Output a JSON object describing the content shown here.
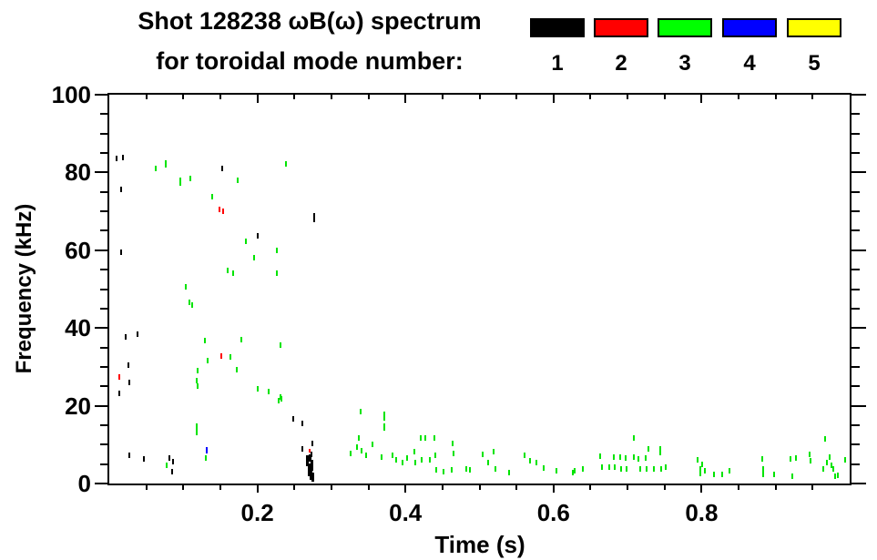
{
  "page": {
    "title_line1": "Shot 128238 ωB(ω) spectrum",
    "title_line2": "for toroidal mode number:"
  },
  "chart_data": {
    "type": "scatter",
    "title": "Shot 128238 ωB(ω) spectrum",
    "subtitle": "for toroidal mode number:",
    "xlabel": "Time (s)",
    "ylabel": "Frequency (kHz)",
    "xlim": [
      0,
      1.0
    ],
    "ylim": [
      0,
      100
    ],
    "x_major_ticks": [
      0.2,
      0.4,
      0.6,
      0.8
    ],
    "x_major_tick_labels": [
      "0.2",
      "0.4",
      "0.6",
      "0.8"
    ],
    "x_minor_step": 0.05,
    "y_major_ticks": [
      0,
      20,
      40,
      60,
      80,
      100
    ],
    "y_major_tick_labels": [
      "0",
      "20",
      "40",
      "60",
      "80",
      "100"
    ],
    "y_minor_step": 5,
    "grid": false,
    "legend_position": "top-right",
    "legend": [
      {
        "label": "1",
        "color": "#000000"
      },
      {
        "label": "2",
        "color": "#ff0000"
      },
      {
        "label": "3",
        "color": "#00ff00"
      },
      {
        "label": "4",
        "color": "#0000ff"
      },
      {
        "label": "5",
        "color": "#ffff00"
      }
    ],
    "series": [
      {
        "name": "1",
        "toroidal_mode": 1,
        "color": "#000000",
        "points": [
          [
            0.01,
            83.5
          ],
          [
            0.018,
            83.8
          ],
          [
            0.153,
            81.0
          ],
          [
            0.016,
            75.6
          ],
          [
            0.277,
            68.5,
            10
          ],
          [
            0.2,
            63.8
          ],
          [
            0.016,
            59.6
          ],
          [
            0.022,
            37.6
          ],
          [
            0.038,
            38.5
          ],
          [
            0.026,
            30.4
          ],
          [
            0.027,
            26.0
          ],
          [
            0.013,
            23.2
          ],
          [
            0.248,
            16.7
          ],
          [
            0.261,
            15.5
          ],
          [
            0.274,
            10.4
          ],
          [
            0.261,
            8.8
          ],
          [
            0.027,
            7.2
          ],
          [
            0.047,
            6.3
          ],
          [
            0.081,
            6.5
          ],
          [
            0.086,
            5.6
          ],
          [
            0.085,
            3.0
          ],
          [
            0.268,
            5.8,
            12,
            3
          ],
          [
            0.27,
            3.5,
            14,
            4
          ],
          [
            0.272,
            2.3,
            12,
            3
          ],
          [
            0.274,
            4.6,
            12,
            3
          ],
          [
            0.275,
            1.6,
            10,
            3
          ],
          [
            0.271,
            6.5,
            8,
            3
          ],
          [
            0.273,
            7.6,
            6,
            2
          ]
        ]
      },
      {
        "name": "2",
        "toroidal_mode": 2,
        "color": "#ff0000",
        "points": [
          [
            0.149,
            70.5
          ],
          [
            0.154,
            70.1
          ],
          [
            0.013,
            27.4
          ],
          [
            0.151,
            32.7
          ],
          [
            0.271,
            8.4,
            4
          ]
        ]
      },
      {
        "name": "3",
        "toroidal_mode": 3,
        "color": "#00e400",
        "points": [
          [
            0.063,
            81.0
          ],
          [
            0.076,
            82.1,
            8
          ],
          [
            0.239,
            82.1
          ],
          [
            0.096,
            77.7,
            9
          ],
          [
            0.11,
            78.4
          ],
          [
            0.173,
            78.0
          ],
          [
            0.139,
            73.8
          ],
          [
            0.226,
            59.9
          ],
          [
            0.184,
            62.2
          ],
          [
            0.196,
            58.0
          ],
          [
            0.16,
            54.8
          ],
          [
            0.167,
            54.1
          ],
          [
            0.226,
            54.1
          ],
          [
            0.103,
            50.6
          ],
          [
            0.108,
            46.6
          ],
          [
            0.112,
            45.9
          ],
          [
            0.231,
            35.7
          ],
          [
            0.129,
            36.7
          ],
          [
            0.178,
            37.1
          ],
          [
            0.163,
            32.5
          ],
          [
            0.133,
            31.6
          ],
          [
            0.172,
            29.2
          ],
          [
            0.119,
            29.0
          ],
          [
            0.118,
            26.5
          ],
          [
            0.119,
            25.1
          ],
          [
            0.2,
            24.4
          ],
          [
            0.215,
            23.7
          ],
          [
            0.232,
            21.8
          ],
          [
            0.229,
            21.3
          ],
          [
            0.231,
            22.3
          ],
          [
            0.118,
            14.4,
            9
          ],
          [
            0.118,
            13.0
          ],
          [
            0.077,
            4.6
          ],
          [
            0.13,
            6.5
          ],
          [
            0.34,
            18.6
          ],
          [
            0.372,
            17.4,
            10
          ],
          [
            0.372,
            14.6,
            8
          ],
          [
            0.337,
            11.6
          ],
          [
            0.326,
            7.7
          ],
          [
            0.335,
            9.3
          ],
          [
            0.341,
            8.4
          ],
          [
            0.347,
            7.2
          ],
          [
            0.355,
            10.0
          ],
          [
            0.368,
            6.7
          ],
          [
            0.383,
            7.2
          ],
          [
            0.387,
            6.0
          ],
          [
            0.396,
            5.3
          ],
          [
            0.402,
            6.5
          ],
          [
            0.412,
            8.1
          ],
          [
            0.413,
            5.3
          ],
          [
            0.421,
            11.8
          ],
          [
            0.427,
            11.6
          ],
          [
            0.422,
            6.0
          ],
          [
            0.433,
            6.0
          ],
          [
            0.439,
            11.6
          ],
          [
            0.44,
            7.2
          ],
          [
            0.442,
            3.5
          ],
          [
            0.451,
            3.0
          ],
          [
            0.464,
            10.4
          ],
          [
            0.465,
            7.7
          ],
          [
            0.463,
            3.5
          ],
          [
            0.482,
            3.7
          ],
          [
            0.487,
            3.5
          ],
          [
            0.504,
            7.4
          ],
          [
            0.512,
            5.3
          ],
          [
            0.519,
            8.1
          ],
          [
            0.521,
            3.7
          ],
          [
            0.54,
            2.8
          ],
          [
            0.561,
            7.2
          ],
          [
            0.568,
            5.8
          ],
          [
            0.577,
            5.3
          ],
          [
            0.587,
            3.9
          ],
          [
            0.604,
            3.2
          ],
          [
            0.626,
            2.8
          ],
          [
            0.629,
            3.2
          ],
          [
            0.64,
            3.7
          ],
          [
            0.663,
            7.0
          ],
          [
            0.665,
            4.2
          ],
          [
            0.675,
            4.2
          ],
          [
            0.681,
            6.7
          ],
          [
            0.683,
            4.2
          ],
          [
            0.69,
            6.7
          ],
          [
            0.691,
            3.7
          ],
          [
            0.698,
            6.5
          ],
          [
            0.699,
            3.7
          ],
          [
            0.708,
            6.7
          ],
          [
            0.708,
            11.6
          ],
          [
            0.715,
            6.3
          ],
          [
            0.717,
            3.7
          ],
          [
            0.724,
            6.5
          ],
          [
            0.726,
            3.7
          ],
          [
            0.728,
            8.8
          ],
          [
            0.736,
            3.7
          ],
          [
            0.744,
            8.4,
            10
          ],
          [
            0.745,
            3.7
          ],
          [
            0.752,
            4.2
          ],
          [
            0.794,
            6.0
          ],
          [
            0.798,
            3.7
          ],
          [
            0.801,
            4.9
          ],
          [
            0.798,
            2.6
          ],
          [
            0.804,
            3.2
          ],
          [
            0.817,
            2.3
          ],
          [
            0.828,
            2.3
          ],
          [
            0.838,
            3.2
          ],
          [
            0.882,
            6.3
          ],
          [
            0.883,
            3.7
          ],
          [
            0.883,
            2.3
          ],
          [
            0.898,
            2.3
          ],
          [
            0.92,
            6.3
          ],
          [
            0.923,
            1.9
          ],
          [
            0.928,
            6.5
          ],
          [
            0.946,
            7.4
          ],
          [
            0.947,
            5.8
          ],
          [
            0.967,
            11.4
          ],
          [
            0.964,
            3.7
          ],
          [
            0.969,
            5.3
          ],
          [
            0.973,
            6.7
          ],
          [
            0.975,
            4.6
          ],
          [
            0.978,
            3.7
          ],
          [
            0.98,
            1.9
          ],
          [
            0.984,
            2.1
          ],
          [
            0.994,
            6.0
          ]
        ]
      },
      {
        "name": "4",
        "toroidal_mode": 4,
        "color": "#0000ff",
        "points": [
          [
            0.131,
            8.6,
            7
          ]
        ]
      },
      {
        "name": "5",
        "toroidal_mode": 5,
        "color": "#ffff00",
        "points": []
      }
    ]
  },
  "layout_colors": {
    "background": "#ffffff",
    "axis": "#000000",
    "text": "#000000"
  }
}
